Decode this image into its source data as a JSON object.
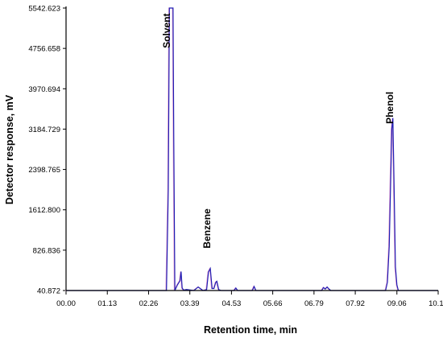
{
  "chart_data": {
    "type": "line",
    "title": "",
    "xlabel": "Retention time, min",
    "ylabel": "Detector response, mV",
    "x_tick_labels": [
      "00.00",
      "01.13",
      "02.26",
      "03.39",
      "04.53",
      "05.66",
      "06.79",
      "07.92",
      "09.06",
      "10.19"
    ],
    "x_tick_values": [
      0.0,
      1.13,
      2.26,
      3.39,
      4.53,
      5.66,
      6.79,
      7.92,
      9.06,
      10.19
    ],
    "y_tick_labels": [
      "40.872",
      "826.836",
      "1612.800",
      "2398.765",
      "3184.729",
      "3970.694",
      "4756.658",
      "5542.623"
    ],
    "y_tick_values": [
      40.872,
      826.836,
      1612.8,
      2398.765,
      3184.729,
      3970.694,
      4756.658,
      5542.623
    ],
    "xlim": [
      0.0,
      10.19
    ],
    "ylim": [
      40.872,
      5542.623
    ],
    "grid": false,
    "legend": "none",
    "colors": {
      "signal": "#1f1fb4",
      "signal_trace2": "#e8a0d0",
      "axis": "#000000"
    },
    "series": [
      {
        "x": [
          0.0,
          2.75,
          2.8,
          2.83,
          2.86,
          2.88,
          2.9,
          2.93,
          2.95,
          2.98,
          3.05,
          3.12,
          3.15,
          3.18,
          3.22,
          3.3,
          3.5,
          3.62,
          3.75,
          3.85,
          3.9,
          3.95,
          4.0,
          4.05,
          4.1,
          4.13,
          4.18,
          4.25,
          4.6,
          4.65,
          4.7,
          5.1,
          5.15,
          5.2,
          7.0,
          7.05,
          7.1,
          7.15,
          7.2,
          7.25,
          8.75,
          8.8,
          8.85,
          8.9,
          8.92,
          8.95,
          8.98,
          9.02,
          9.06,
          9.1,
          10.19
        ],
        "y": [
          40.9,
          40.9,
          2000,
          5542.6,
          5542.6,
          5542.6,
          5542.6,
          5542.6,
          3000,
          40.9,
          150,
          230,
          410,
          90,
          50,
          60,
          40.9,
          110,
          40.9,
          60,
          400,
          470,
          80,
          80,
          200,
          220,
          60,
          40.9,
          40.9,
          90,
          40.9,
          40.9,
          120,
          40.9,
          40.9,
          100,
          70,
          110,
          70,
          40.9,
          40.9,
          200,
          900,
          2500,
          3184.7,
          3400,
          2200,
          500,
          150,
          40.9,
          40.9
        ]
      }
    ],
    "annotations": [
      {
        "text": "Solvent",
        "x": 2.85,
        "y": 5100,
        "rotation": -90
      },
      {
        "text": "Benzene",
        "x": 3.95,
        "y": 1250,
        "rotation": -90
      },
      {
        "text": "Phenol",
        "x": 8.95,
        "y": 3600,
        "rotation": -90
      }
    ]
  }
}
